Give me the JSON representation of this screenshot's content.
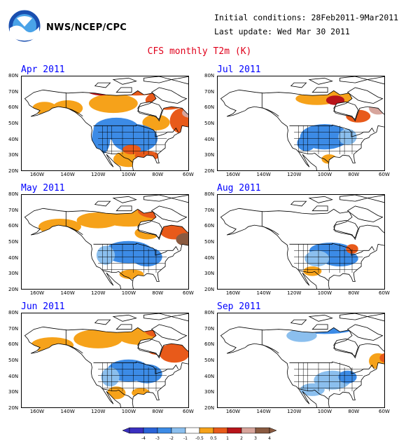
{
  "header": {
    "org": "NWS/NCEP/CPC",
    "initial_conditions": "Initial conditions: 28Feb2011-9Mar2011",
    "last_update": "Last update: Wed Mar 30 2011",
    "title": "CFS monthly T2m (K)"
  },
  "axes": {
    "lat_labels": [
      "80N",
      "70N",
      "60N",
      "50N",
      "40N",
      "30N",
      "20N"
    ],
    "lon_labels": [
      "160W",
      "140W",
      "120W",
      "100W",
      "80W",
      "60W"
    ]
  },
  "panels": [
    {
      "title": "Apr 2011"
    },
    {
      "title": "Jul 2011"
    },
    {
      "title": "May 2011"
    },
    {
      "title": "Aug 2011"
    },
    {
      "title": "Jun 2011"
    },
    {
      "title": "Sep 2011"
    }
  ],
  "legend": {
    "labels": [
      "-4",
      "-3",
      "-2",
      "-1",
      "-0.5",
      "0.5",
      "1",
      "2",
      "3",
      "4"
    ],
    "colors": [
      "#3a2fc0",
      "#2a63d8",
      "#3c8be6",
      "#8bbfee",
      "#ffffff",
      "#f6a21a",
      "#e85a1a",
      "#b8141a",
      "#d7a59c",
      "#8a5a40"
    ]
  },
  "colors": {
    "title": "#e0001b",
    "panel_title": "#0000ff"
  }
}
